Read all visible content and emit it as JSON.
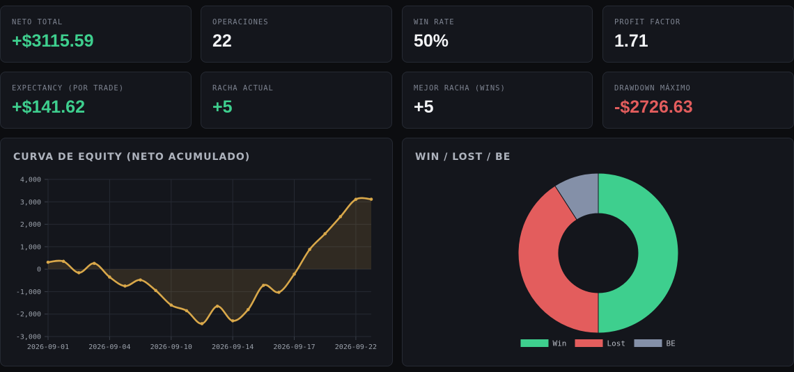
{
  "stats": [
    {
      "label": "NETO TOTAL",
      "value": "+$3115.59",
      "tone": "pos"
    },
    {
      "label": "OPERACIONES",
      "value": "22",
      "tone": "neutral"
    },
    {
      "label": "WIN RATE",
      "value": "50%",
      "tone": "neutral"
    },
    {
      "label": "PROFIT FACTOR",
      "value": "1.71",
      "tone": "neutral"
    },
    {
      "label": "EXPECTANCY (POR TRADE)",
      "value": "+$141.62",
      "tone": "pos"
    },
    {
      "label": "RACHA ACTUAL",
      "value": "+5",
      "tone": "pos"
    },
    {
      "label": "MEJOR RACHA (WINS)",
      "value": "+5",
      "tone": "neutral"
    },
    {
      "label": "DRAWDOWN MÁXIMO",
      "value": "-$2726.63",
      "tone": "neg"
    }
  ],
  "colors": {
    "positive": "#3ecf8e",
    "negative": "#e35d5d",
    "equity_line": "#d9a84a",
    "be": "#8490a8"
  },
  "chart_data": [
    {
      "type": "area",
      "title": "CURVA DE EQUITY (NETO ACUMULADO)",
      "xlabel": "",
      "ylabel": "",
      "ylim": [
        -3000,
        4000
      ],
      "y_ticks": [
        "4,000",
        "3,000",
        "2,000",
        "1,000",
        "0",
        "-1,000",
        "-2,000",
        "-3,000"
      ],
      "y_tick_values": [
        4000,
        3000,
        2000,
        1000,
        0,
        -1000,
        -2000,
        -3000
      ],
      "x_tick_labels": [
        "2026-09-01",
        "2026-09-04",
        "2026-09-10",
        "2026-09-14",
        "2026-09-17",
        "2026-09-22"
      ],
      "x_tick_index": [
        0,
        4,
        8,
        12,
        16,
        20
      ],
      "grid": true,
      "series": [
        {
          "values": [
            310,
            350,
            -160,
            260,
            -350,
            -750,
            -480,
            -950,
            -1600,
            -1850,
            -2426,
            -1650,
            -2300,
            -1800,
            -720,
            -1030,
            -220,
            880,
            1580,
            2340,
            3110,
            3115.59
          ]
        }
      ]
    },
    {
      "type": "pie",
      "title": "WIN / LOST / BE",
      "labels": [
        "Win",
        "Lost",
        "BE"
      ],
      "values": [
        11,
        9,
        2
      ],
      "legend": "bottom"
    }
  ]
}
